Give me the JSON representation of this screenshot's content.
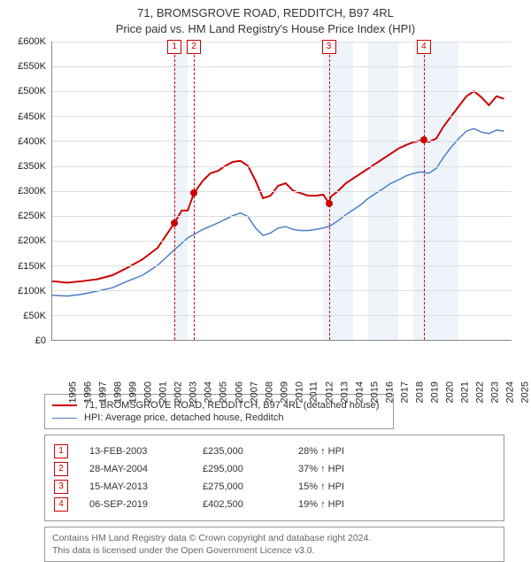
{
  "title": {
    "line1": "71, BROMSGROVE ROAD, REDDITCH, B97 4RL",
    "line2": "Price paid vs. HM Land Registry's House Price Index (HPI)"
  },
  "chart": {
    "type": "line",
    "x_years": [
      1995,
      1996,
      1997,
      1998,
      1999,
      2000,
      2001,
      2002,
      2003,
      2004,
      2005,
      2006,
      2007,
      2008,
      2009,
      2010,
      2011,
      2012,
      2013,
      2014,
      2015,
      2016,
      2017,
      2018,
      2019,
      2020,
      2021,
      2022,
      2023,
      2024,
      2025
    ],
    "xlim": [
      1995,
      2025.5
    ],
    "ylim": [
      0,
      600000
    ],
    "ytick_step": 50000,
    "y_prefix": "£",
    "y_suffix": "K",
    "y_divisor": 1000,
    "background_color": "#ffffff",
    "grid_color": "#dddddd",
    "axis_color": "#888888",
    "band_color": "#e6eef9",
    "band_years": [
      2003,
      2013,
      2014,
      2016,
      2017,
      2019,
      2020,
      2021
    ],
    "series": {
      "property": {
        "color": "#cc0000",
        "line_width": 2,
        "points": [
          [
            1995.0,
            118000
          ],
          [
            1996.0,
            115000
          ],
          [
            1997.0,
            118000
          ],
          [
            1998.0,
            122000
          ],
          [
            1999.0,
            130000
          ],
          [
            2000.0,
            145000
          ],
          [
            2001.0,
            162000
          ],
          [
            2002.0,
            185000
          ],
          [
            2003.12,
            235000
          ],
          [
            2003.6,
            260000
          ],
          [
            2004.0,
            260000
          ],
          [
            2004.41,
            295000
          ],
          [
            2005.0,
            320000
          ],
          [
            2005.5,
            335000
          ],
          [
            2006.0,
            340000
          ],
          [
            2006.5,
            350000
          ],
          [
            2007.0,
            358000
          ],
          [
            2007.5,
            360000
          ],
          [
            2008.0,
            350000
          ],
          [
            2008.5,
            320000
          ],
          [
            2009.0,
            285000
          ],
          [
            2009.5,
            290000
          ],
          [
            2010.0,
            310000
          ],
          [
            2010.5,
            315000
          ],
          [
            2011.0,
            300000
          ],
          [
            2011.5,
            295000
          ],
          [
            2012.0,
            290000
          ],
          [
            2012.5,
            290000
          ],
          [
            2013.0,
            292000
          ],
          [
            2013.37,
            275000
          ],
          [
            2013.5,
            288000
          ],
          [
            2014.0,
            300000
          ],
          [
            2014.5,
            315000
          ],
          [
            2015.0,
            325000
          ],
          [
            2015.5,
            335000
          ],
          [
            2016.0,
            345000
          ],
          [
            2016.5,
            355000
          ],
          [
            2017.0,
            365000
          ],
          [
            2017.5,
            375000
          ],
          [
            2018.0,
            385000
          ],
          [
            2018.5,
            392000
          ],
          [
            2019.0,
            398000
          ],
          [
            2019.68,
            402500
          ],
          [
            2020.0,
            398000
          ],
          [
            2020.5,
            405000
          ],
          [
            2021.0,
            430000
          ],
          [
            2021.5,
            450000
          ],
          [
            2022.0,
            470000
          ],
          [
            2022.5,
            490000
          ],
          [
            2023.0,
            500000
          ],
          [
            2023.5,
            488000
          ],
          [
            2024.0,
            472000
          ],
          [
            2024.5,
            490000
          ],
          [
            2025.0,
            485000
          ]
        ]
      },
      "hpi": {
        "color": "#4a7fc4",
        "line_width": 1.5,
        "points": [
          [
            1995.0,
            90000
          ],
          [
            1996.0,
            88000
          ],
          [
            1997.0,
            92000
          ],
          [
            1998.0,
            98000
          ],
          [
            1999.0,
            105000
          ],
          [
            2000.0,
            118000
          ],
          [
            2001.0,
            130000
          ],
          [
            2002.0,
            150000
          ],
          [
            2003.0,
            178000
          ],
          [
            2004.0,
            205000
          ],
          [
            2005.0,
            222000
          ],
          [
            2006.0,
            235000
          ],
          [
            2007.0,
            250000
          ],
          [
            2007.5,
            255000
          ],
          [
            2008.0,
            248000
          ],
          [
            2008.5,
            225000
          ],
          [
            2009.0,
            210000
          ],
          [
            2009.5,
            215000
          ],
          [
            2010.0,
            225000
          ],
          [
            2010.5,
            228000
          ],
          [
            2011.0,
            222000
          ],
          [
            2011.5,
            220000
          ],
          [
            2012.0,
            220000
          ],
          [
            2012.5,
            222000
          ],
          [
            2013.0,
            225000
          ],
          [
            2013.5,
            230000
          ],
          [
            2014.0,
            240000
          ],
          [
            2014.5,
            252000
          ],
          [
            2015.0,
            262000
          ],
          [
            2015.5,
            272000
          ],
          [
            2016.0,
            285000
          ],
          [
            2016.5,
            295000
          ],
          [
            2017.0,
            305000
          ],
          [
            2017.5,
            315000
          ],
          [
            2018.0,
            322000
          ],
          [
            2018.5,
            330000
          ],
          [
            2019.0,
            335000
          ],
          [
            2019.5,
            338000
          ],
          [
            2020.0,
            335000
          ],
          [
            2020.5,
            345000
          ],
          [
            2021.0,
            368000
          ],
          [
            2021.5,
            388000
          ],
          [
            2022.0,
            405000
          ],
          [
            2022.5,
            420000
          ],
          [
            2023.0,
            425000
          ],
          [
            2023.5,
            418000
          ],
          [
            2024.0,
            415000
          ],
          [
            2024.5,
            422000
          ],
          [
            2025.0,
            420000
          ]
        ]
      }
    },
    "events": [
      {
        "n": "1",
        "year": 2003.12,
        "value": 235000
      },
      {
        "n": "2",
        "year": 2004.41,
        "value": 295000
      },
      {
        "n": "3",
        "year": 2013.37,
        "value": 275000
      },
      {
        "n": "4",
        "year": 2019.68,
        "value": 402500
      }
    ]
  },
  "legend": {
    "items": [
      {
        "label": "71, BROMSGROVE ROAD, REDDITCH, B97 4RL (detached house)",
        "color": "#cc0000",
        "width": 2
      },
      {
        "label": "HPI: Average price, detached house, Redditch",
        "color": "#4a7fc4",
        "width": 1.5
      }
    ]
  },
  "events_table": [
    {
      "n": "1",
      "date": "13-FEB-2003",
      "price": "£235,000",
      "delta": "28% ↑ HPI"
    },
    {
      "n": "2",
      "date": "28-MAY-2004",
      "price": "£295,000",
      "delta": "37% ↑ HPI"
    },
    {
      "n": "3",
      "date": "15-MAY-2013",
      "price": "£275,000",
      "delta": "15% ↑ HPI"
    },
    {
      "n": "4",
      "date": "06-SEP-2019",
      "price": "£402,500",
      "delta": "19% ↑ HPI"
    }
  ],
  "footer": {
    "line1": "Contains HM Land Registry data © Crown copyright and database right 2024.",
    "line2": "This data is licensed under the Open Government Licence v3.0."
  }
}
